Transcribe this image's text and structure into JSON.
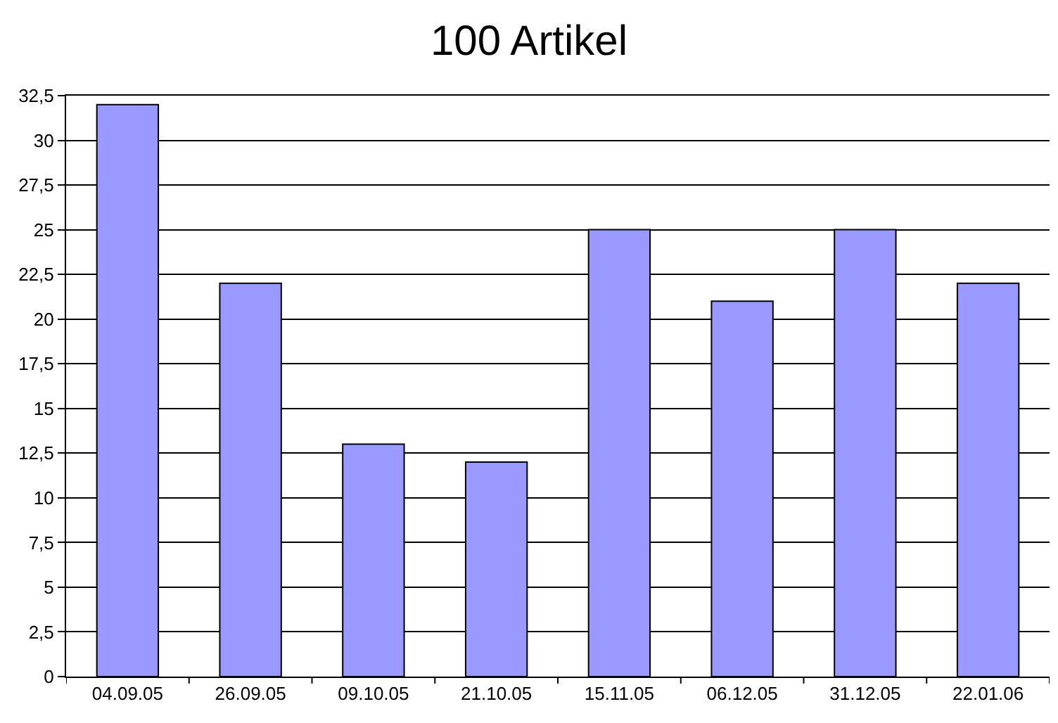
{
  "chart_data": {
    "type": "bar",
    "title": "100 Artikel",
    "categories": [
      "04.09.05",
      "26.09.05",
      "09.10.05",
      "21.10.05",
      "15.11.05",
      "06.12.05",
      "31.12.05",
      "22.01.06"
    ],
    "values": [
      32,
      22,
      13,
      12,
      25,
      21,
      25,
      22
    ],
    "color": "#9999ff",
    "ylim": [
      0,
      32.5
    ],
    "yticks": [
      0,
      {
        "value": 2.5,
        "label": "2,5"
      },
      5,
      {
        "value": 7.5,
        "label": "7,5"
      },
      10,
      {
        "value": 12.5,
        "label": "12,5"
      },
      15,
      {
        "value": 17.5,
        "label": "17,5"
      },
      20,
      {
        "value": 22.5,
        "label": "22,5"
      },
      25,
      {
        "value": 27.5,
        "label": "27,5"
      },
      30,
      {
        "value": 32.5,
        "label": "32,5"
      }
    ],
    "grid": "y"
  }
}
